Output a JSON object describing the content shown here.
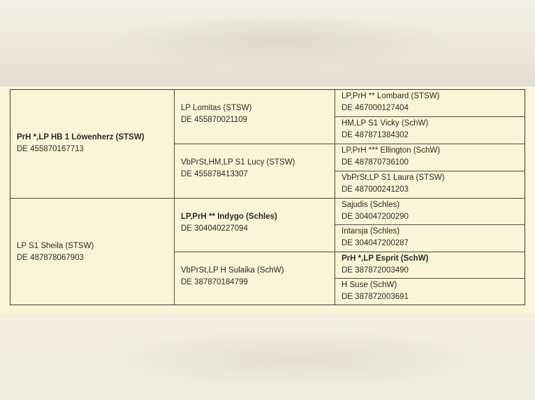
{
  "pedigree": {
    "sire": {
      "name": "PrH *,LP HB 1 Löwenherz (STSW)",
      "id": "DE 455870167713",
      "bold": true
    },
    "dam": {
      "name": "LP S1 Sheila (STSW)",
      "id": "DE 487878067903",
      "bold": false
    },
    "generation2": [
      {
        "name": "LP Lomitas (STSW)",
        "id": "DE 455870021109",
        "bold": false
      },
      {
        "name": "VbPrSt,HM,LP S1 Lucy (STSW)",
        "id": "DE 455878413307",
        "bold": false
      },
      {
        "name": "LP,PrH ** Indygo (Schles)",
        "id": "DE 304040227094",
        "bold": true
      },
      {
        "name": "VbPrSt,LP H Sulaika (SchW)",
        "id": "DE 387870184799",
        "bold": false
      }
    ],
    "generation3": [
      {
        "name": "LP,PrH ** Lombard (STSW)",
        "id": "DE 467000127404",
        "bold": false
      },
      {
        "name": "HM,LP S1 Vicky (SchW)",
        "id": "DE 487871384302",
        "bold": false
      },
      {
        "name": "LP,PrH *** Ellington (SchW)",
        "id": "DE 487870736100",
        "bold": false
      },
      {
        "name": "VbPrSt,LP S1 Laura (STSW)",
        "id": "DE 487000241203",
        "bold": false
      },
      {
        "name": "Sajudis (Schles)",
        "id": "DE 304047200290",
        "bold": false
      },
      {
        "name": "Intarsja (Schles)",
        "id": "DE 304047200287",
        "bold": false
      },
      {
        "name": "PrH *,LP Esprit (SchW)",
        "id": "DE 387872003490",
        "bold": true
      },
      {
        "name": "H Suse (SchW)",
        "id": "DE 387872003691",
        "bold": false
      }
    ]
  }
}
